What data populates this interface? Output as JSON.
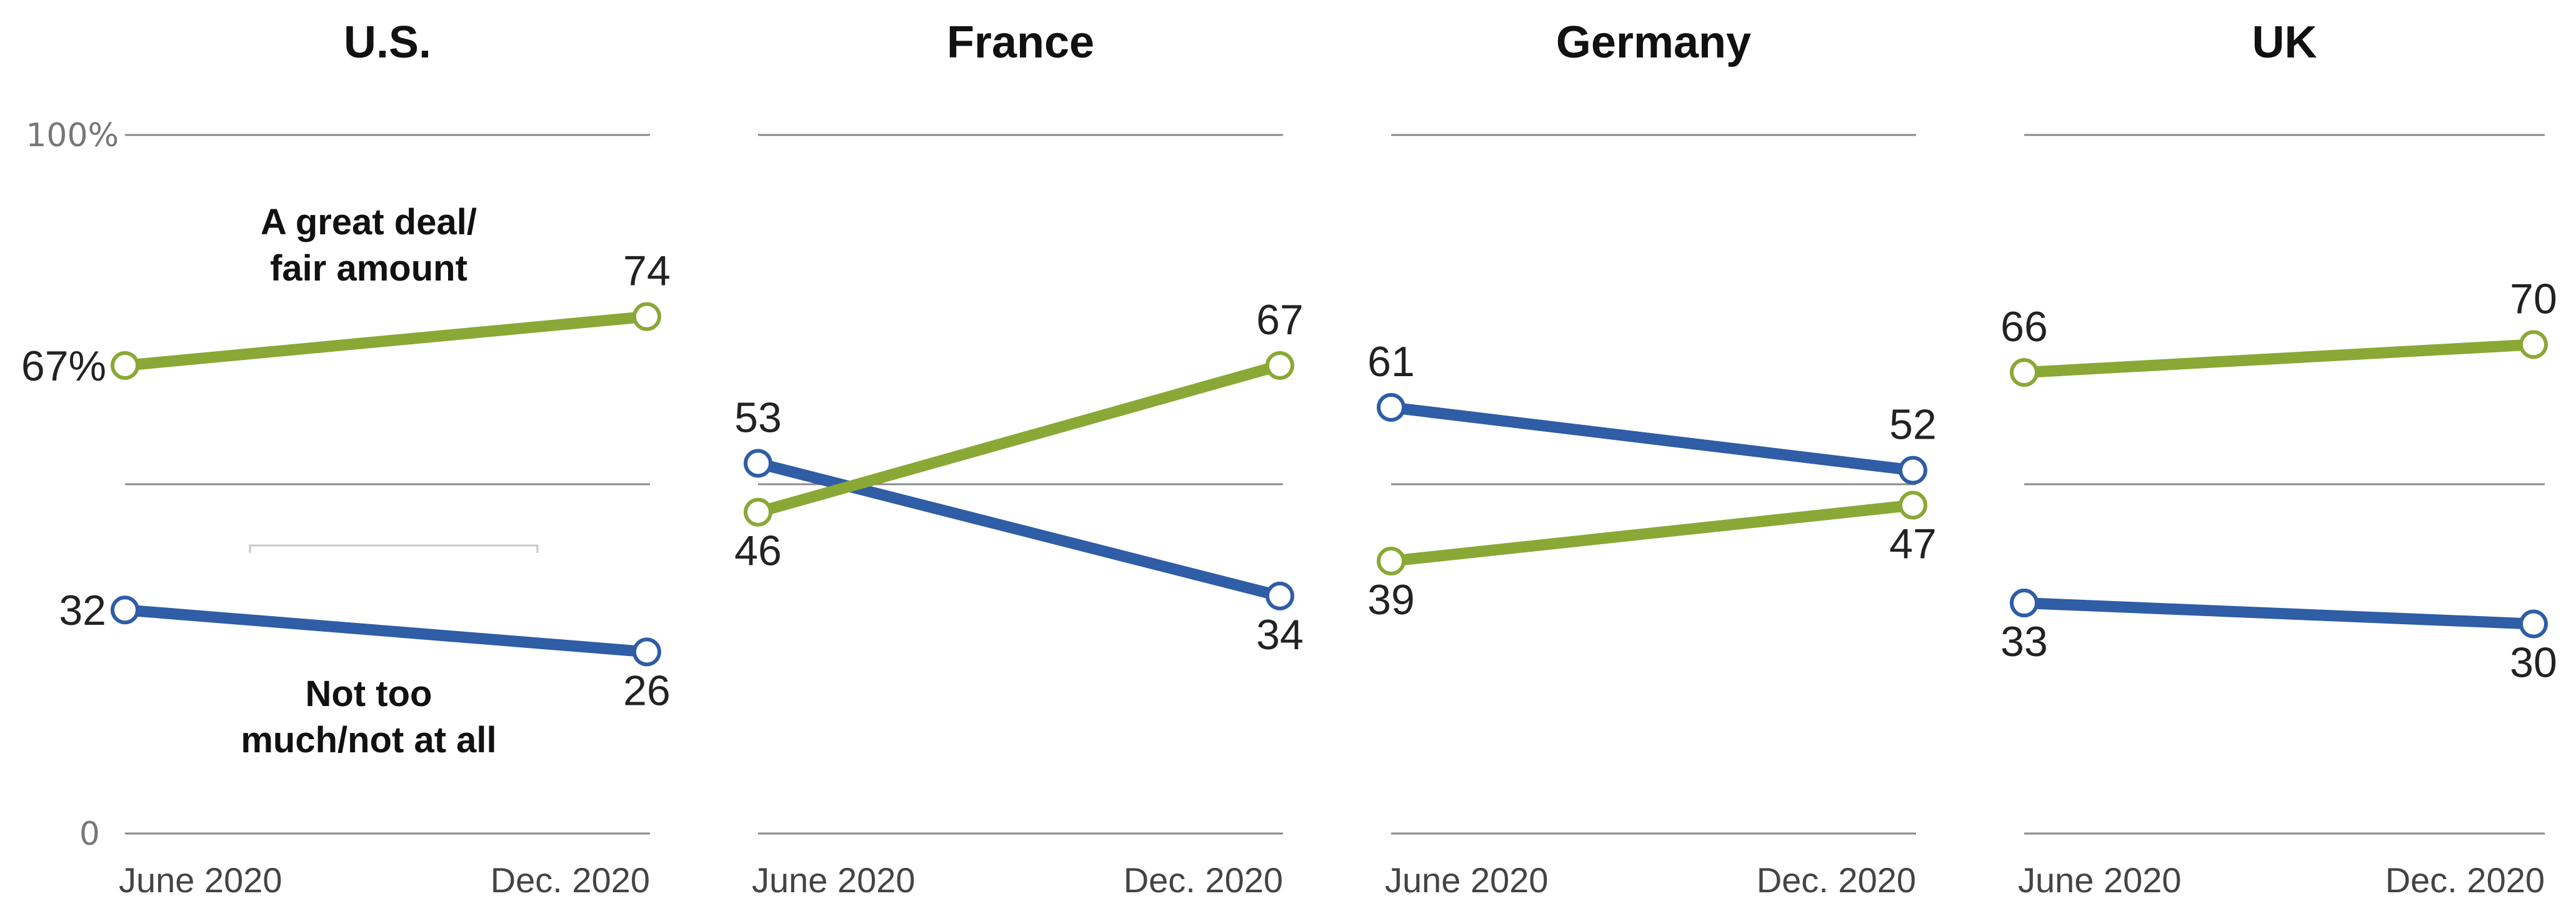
{
  "chart_data": {
    "type": "line",
    "x": [
      "June 2020",
      "Dec. 2020"
    ],
    "ylim": [
      0,
      100
    ],
    "y_ticks": [
      "0",
      "100%"
    ],
    "grid": true,
    "series_colors": {
      "great_deal": "#8aa836",
      "not_too_much": "#2f5da6"
    },
    "series_labels": {
      "great_deal": "A great deal/\nfair amount",
      "not_too_much": "Not too\nmuch/not at all"
    },
    "panels": [
      {
        "title": "U.S.",
        "great_deal": [
          67,
          74
        ],
        "not_too_much": [
          32,
          26
        ],
        "great_deal_labels": [
          "67%",
          "74"
        ],
        "not_too_much_labels": [
          "32",
          "26"
        ]
      },
      {
        "title": "France",
        "great_deal": [
          46,
          67
        ],
        "not_too_much": [
          53,
          34
        ],
        "great_deal_labels": [
          "46",
          "67"
        ],
        "not_too_much_labels": [
          "53",
          "34"
        ]
      },
      {
        "title": "Germany",
        "great_deal": [
          39,
          47
        ],
        "not_too_much": [
          61,
          52
        ],
        "great_deal_labels": [
          "39",
          "47"
        ],
        "not_too_much_labels": [
          "61",
          "52"
        ]
      },
      {
        "title": "UK",
        "great_deal": [
          66,
          70
        ],
        "not_too_much": [
          33,
          30
        ],
        "great_deal_labels": [
          "66",
          "70"
        ],
        "not_too_much_labels": [
          "33",
          "30"
        ]
      }
    ]
  }
}
